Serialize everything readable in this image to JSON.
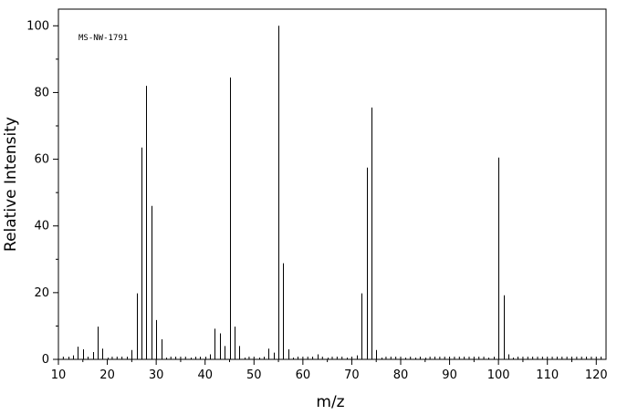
{
  "chart_data": {
    "type": "bar",
    "subtype": "mass-spectrum-stick",
    "annotation": "MS-NW-1791",
    "xlabel": "m/z",
    "ylabel": "Relative Intensity",
    "xlim": [
      10,
      122
    ],
    "ylim": [
      0,
      105
    ],
    "x_ticks": [
      10,
      20,
      30,
      40,
      50,
      60,
      70,
      80,
      90,
      100,
      110,
      120
    ],
    "y_ticks": [
      0,
      20,
      40,
      60,
      80,
      100
    ],
    "grid": false,
    "legend": "none",
    "peaks": [
      [
        12,
        0.8
      ],
      [
        13,
        1.2
      ],
      [
        14,
        3.8
      ],
      [
        15,
        3.0
      ],
      [
        16,
        0.8
      ],
      [
        17,
        2.2
      ],
      [
        18,
        9.8
      ],
      [
        19,
        3.2
      ],
      [
        20,
        0.5
      ],
      [
        24,
        0.8
      ],
      [
        25,
        2.8
      ],
      [
        26,
        19.8
      ],
      [
        27,
        63.5
      ],
      [
        28,
        82.0
      ],
      [
        29,
        46.0
      ],
      [
        30,
        11.8
      ],
      [
        31,
        6.0
      ],
      [
        32,
        0.5
      ],
      [
        37,
        0.5
      ],
      [
        38,
        0.8
      ],
      [
        39,
        0.8
      ],
      [
        40,
        0.8
      ],
      [
        41,
        1.5
      ],
      [
        42,
        9.2
      ],
      [
        43,
        7.8
      ],
      [
        44,
        4.0
      ],
      [
        45,
        84.5
      ],
      [
        46,
        9.8
      ],
      [
        47,
        4.0
      ],
      [
        48,
        0.5
      ],
      [
        51,
        0.5
      ],
      [
        52,
        0.8
      ],
      [
        53,
        3.2
      ],
      [
        54,
        2.0
      ],
      [
        55,
        100.0
      ],
      [
        56,
        28.8
      ],
      [
        57,
        3.0
      ],
      [
        58,
        0.5
      ],
      [
        63,
        1.5
      ],
      [
        65,
        0.5
      ],
      [
        69,
        0.5
      ],
      [
        71,
        1.2
      ],
      [
        72,
        19.8
      ],
      [
        73,
        57.5
      ],
      [
        74,
        75.5
      ],
      [
        75,
        2.8
      ],
      [
        76,
        0.5
      ],
      [
        81,
        0.5
      ],
      [
        83,
        0.5
      ],
      [
        85,
        0.5
      ],
      [
        98,
        0.5
      ],
      [
        99,
        0.8
      ],
      [
        100,
        60.5
      ],
      [
        101,
        19.2
      ],
      [
        102,
        1.5
      ],
      [
        103,
        0.5
      ]
    ]
  }
}
